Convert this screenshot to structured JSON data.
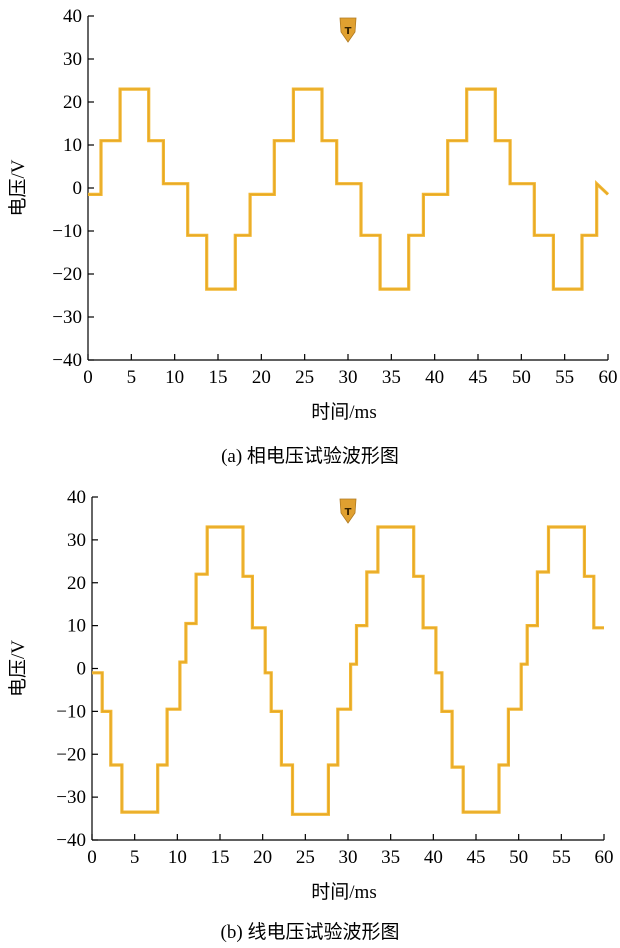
{
  "colors": {
    "waveform": "#F2B733",
    "waveform_dark": "#D89A17",
    "axis": "#000000",
    "trigger_marker": "#E0A030"
  },
  "chart_data": [
    {
      "type": "line",
      "caption": "(a) 相电压试验波形图",
      "xlabel": "时间/ms",
      "ylabel": "电压/V",
      "xlim": [
        0,
        60
      ],
      "ylim": [
        -40,
        40
      ],
      "xticks": [
        0,
        5,
        10,
        15,
        20,
        25,
        30,
        35,
        40,
        45,
        50,
        55,
        60
      ],
      "yticks": [
        40,
        30,
        20,
        10,
        0,
        -10,
        -20,
        -30,
        -40
      ],
      "grid": false,
      "marker_label": "T",
      "marker_x": 30,
      "series": [
        {
          "x": [
            0,
            1.5,
            1.5,
            3.7,
            3.7,
            7,
            7,
            8.7,
            8.7,
            11.5,
            11.5,
            13.7,
            13.7,
            17,
            17,
            18.7,
            18.7,
            21.5,
            21.5,
            23.7,
            23.7,
            27,
            27,
            28.7,
            28.7,
            31.5,
            31.5,
            33.7,
            33.7,
            37,
            37,
            38.7,
            38.7,
            41.5,
            41.5,
            43.7,
            43.7,
            47,
            47,
            48.7,
            48.7,
            51.5,
            51.5,
            53.7,
            53.7,
            57,
            57,
            58.7,
            58.7,
            60
          ],
          "y": [
            -1.5,
            -1.5,
            11,
            11,
            23,
            23,
            11,
            11,
            1,
            1,
            -11,
            -11,
            -23.5,
            -23.5,
            -11,
            -11,
            -1.5,
            -1.5,
            11,
            11,
            23,
            23,
            11,
            11,
            1,
            1,
            -11,
            -11,
            -23.5,
            -23.5,
            -11,
            -11,
            -1.5,
            -1.5,
            11,
            11,
            23,
            23,
            11,
            11,
            1,
            1,
            -11,
            -11,
            -23.5,
            -23.5,
            -11,
            -11,
            1,
            -1.5
          ]
        }
      ]
    },
    {
      "type": "line",
      "caption": "(b) 线电压试验波形图",
      "xlabel": "时间/ms",
      "ylabel": "电压/V",
      "xlim": [
        0,
        60
      ],
      "ylim": [
        -40,
        40
      ],
      "xticks": [
        0,
        5,
        10,
        15,
        20,
        25,
        30,
        35,
        40,
        45,
        50,
        55,
        60
      ],
      "yticks": [
        40,
        30,
        20,
        10,
        0,
        -10,
        -20,
        -30,
        -40
      ],
      "grid": false,
      "marker_label": "T",
      "marker_x": 30,
      "series": [
        {
          "x": [
            0,
            1.2,
            1.2,
            2.2,
            2.2,
            3.5,
            3.5,
            7.7,
            7.7,
            8.8,
            8.8,
            10.3,
            10.3,
            11,
            11,
            12.2,
            12.2,
            13.5,
            13.5,
            17.7,
            17.7,
            18.8,
            18.8,
            20.3,
            20.3,
            21,
            21,
            22.2,
            22.2,
            23.5,
            23.5,
            27.7,
            27.7,
            28.8,
            28.8,
            30.3,
            30.3,
            31,
            31,
            32.2,
            32.2,
            33.5,
            33.5,
            37.7,
            37.7,
            38.8,
            38.8,
            40.3,
            40.3,
            41,
            41,
            42.2,
            42.2,
            43.5,
            43.5,
            47.7,
            47.7,
            48.8,
            48.8,
            50.3,
            50.3,
            51,
            51,
            52.2,
            52.2,
            53.5,
            53.5,
            57.7,
            57.7,
            58.8,
            58.8,
            60
          ],
          "y": [
            -1,
            -1,
            -10,
            -10,
            -22.5,
            -22.5,
            -33.5,
            -33.5,
            -22.5,
            -22.5,
            -9.5,
            -9.5,
            1.5,
            1.5,
            10.5,
            10.5,
            22,
            22,
            33,
            33,
            21.5,
            21.5,
            9.5,
            9.5,
            -1,
            -1,
            -10,
            -10,
            -22.5,
            -22.5,
            -34,
            -34,
            -22.5,
            -22.5,
            -9.5,
            -9.5,
            1,
            1,
            10,
            10,
            22.5,
            22.5,
            33,
            33,
            21.5,
            21.5,
            9.5,
            9.5,
            -1,
            -1,
            -10,
            -10,
            -23,
            -23,
            -33.5,
            -33.5,
            -22.5,
            -22.5,
            -9.5,
            -9.5,
            1,
            1,
            10,
            10,
            22.5,
            22.5,
            33,
            33,
            21.5,
            21.5,
            9.5,
            9.5
          ]
        }
      ]
    }
  ]
}
